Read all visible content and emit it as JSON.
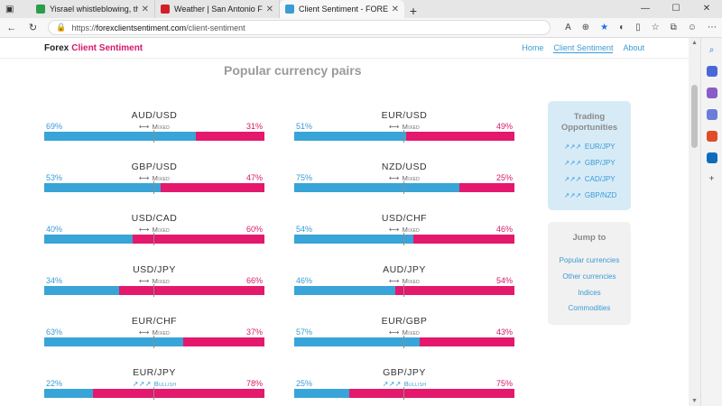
{
  "browser": {
    "tabs": [
      {
        "title": "Yisrael whistleblowing, the fore",
        "favicon_color": "#2a9d4a"
      },
      {
        "title": "Weather | San Antonio Forecast",
        "favicon_color": "#d11f2a"
      },
      {
        "title": "Client Sentiment - FOREX Client",
        "favicon_color": "#3a9bd5"
      }
    ],
    "url_domain": "forexclientsentiment.com",
    "url_path": "/client-sentiment",
    "url_prefix": "https://"
  },
  "site": {
    "brand_main": "Forex",
    "brand_accent": "Client Sentiment",
    "nav": [
      "Home",
      "Client Sentiment",
      "About"
    ]
  },
  "section_title": "Popular currency pairs",
  "pairs": [
    {
      "name": "AUD/USD",
      "long": "69%",
      "short": "31%",
      "long_value": 69,
      "sentiment": "Mixed"
    },
    {
      "name": "EUR/USD",
      "long": "51%",
      "short": "49%",
      "long_value": 51,
      "sentiment": "Mixed"
    },
    {
      "name": "GBP/USD",
      "long": "53%",
      "short": "47%",
      "long_value": 53,
      "sentiment": "Mixed"
    },
    {
      "name": "NZD/USD",
      "long": "75%",
      "short": "25%",
      "long_value": 75,
      "sentiment": "Mixed"
    },
    {
      "name": "USD/CAD",
      "long": "40%",
      "short": "60%",
      "long_value": 40,
      "sentiment": "Mixed"
    },
    {
      "name": "USD/CHF",
      "long": "54%",
      "short": "46%",
      "long_value": 54,
      "sentiment": "Mixed"
    },
    {
      "name": "USD/JPY",
      "long": "34%",
      "short": "66%",
      "long_value": 34,
      "sentiment": "Mixed"
    },
    {
      "name": "AUD/JPY",
      "long": "46%",
      "short": "54%",
      "long_value": 46,
      "sentiment": "Mixed"
    },
    {
      "name": "EUR/CHF",
      "long": "63%",
      "short": "37%",
      "long_value": 63,
      "sentiment": "Mixed"
    },
    {
      "name": "EUR/GBP",
      "long": "57%",
      "short": "43%",
      "long_value": 57,
      "sentiment": "Mixed"
    },
    {
      "name": "EUR/JPY",
      "long": "22%",
      "short": "78%",
      "long_value": 22,
      "sentiment": "Bullish"
    },
    {
      "name": "GBP/JPY",
      "long": "25%",
      "short": "75%",
      "long_value": 25,
      "sentiment": "Bullish"
    }
  ],
  "trading": {
    "title_line1": "Trading",
    "title_line2": "Opportunities",
    "items": [
      {
        "arrows": "↗↗↗",
        "pair": "EUR/JPY"
      },
      {
        "arrows": "↗↗↗",
        "pair": "GBP/JPY"
      },
      {
        "arrows": "↗↗↗",
        "pair": "CAD/JPY"
      },
      {
        "arrows": "↗↗↗",
        "pair": "GBP/NZD"
      }
    ]
  },
  "jump": {
    "title": "Jump to",
    "links": [
      "Popular currencies",
      "Other currencies",
      "Indices",
      "Commodities"
    ]
  },
  "colors": {
    "long": "#38a4d8",
    "short": "#e4186c",
    "accent": "#d8176a"
  }
}
